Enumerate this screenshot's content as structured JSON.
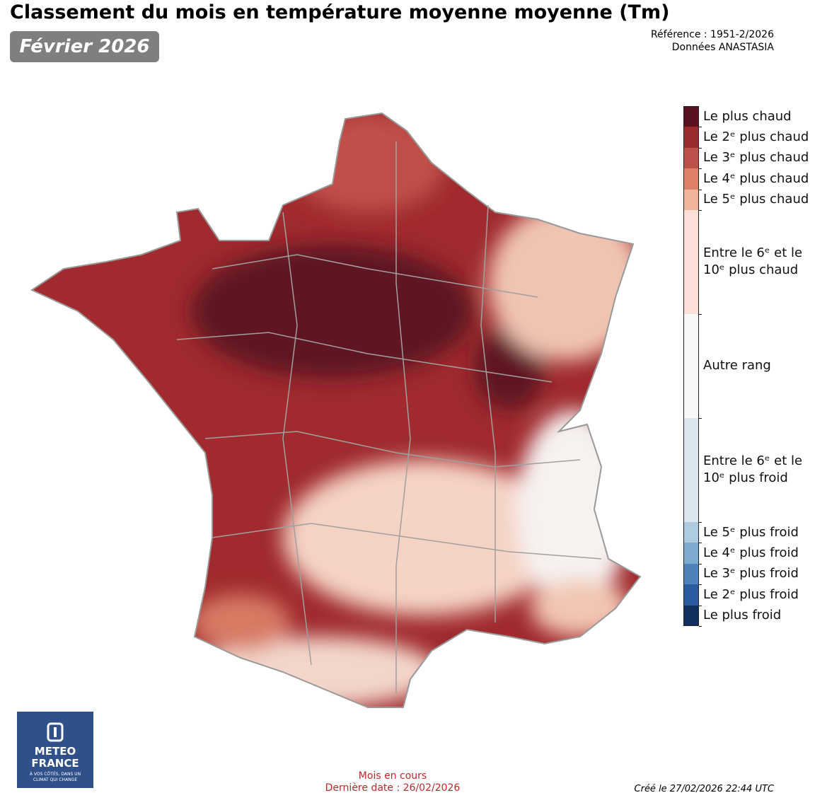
{
  "header": {
    "title": "Classement du mois en température moyenne moyenne (Tm)",
    "badge": "Février 2026",
    "reference": "Référence : 1951-2/2026",
    "source": "Données ANASTASIA"
  },
  "legend": {
    "items": [
      {
        "label": "Le plus chaud",
        "color": "#5a1220"
      },
      {
        "label": "Le 2ᵉ plus chaud",
        "color": "#9b2a2f"
      },
      {
        "label": "Le 3ᵉ plus chaud",
        "color": "#c0504a"
      },
      {
        "label": "Le 4ᵉ plus chaud",
        "color": "#dc8068"
      },
      {
        "label": "Le 5ᵉ plus chaud",
        "color": "#f0b49a"
      },
      {
        "label": "Entre le 6ᵉ et le 10ᵉ plus chaud",
        "color": "#fae0d6"
      },
      {
        "label": "Autre rang",
        "color": "#f8f8f8"
      },
      {
        "label": "Entre le 6ᵉ et le 10ᵉ plus froid",
        "color": "#dce6f0"
      },
      {
        "label": "Le 5ᵉ plus froid",
        "color": "#aecbe0"
      },
      {
        "label": "Le 4ᵉ plus froid",
        "color": "#7eabd0"
      },
      {
        "label": "Le 3ᵉ plus froid",
        "color": "#4f82bb"
      },
      {
        "label": "Le 2ᵉ plus froid",
        "color": "#2c5a9e"
      },
      {
        "label": "Le plus froid",
        "color": "#12305e"
      }
    ]
  },
  "logo": {
    "line1": "METEO",
    "line2": "FRANCE",
    "tagline": "À VOS CÔTÉS, DANS UN CLIMAT QUI CHANGE"
  },
  "footer": {
    "status": "Mois en cours",
    "last_date": "Dernière date : 26/02/2026",
    "created": "Créé le 27/02/2026 22:44 UTC"
  }
}
